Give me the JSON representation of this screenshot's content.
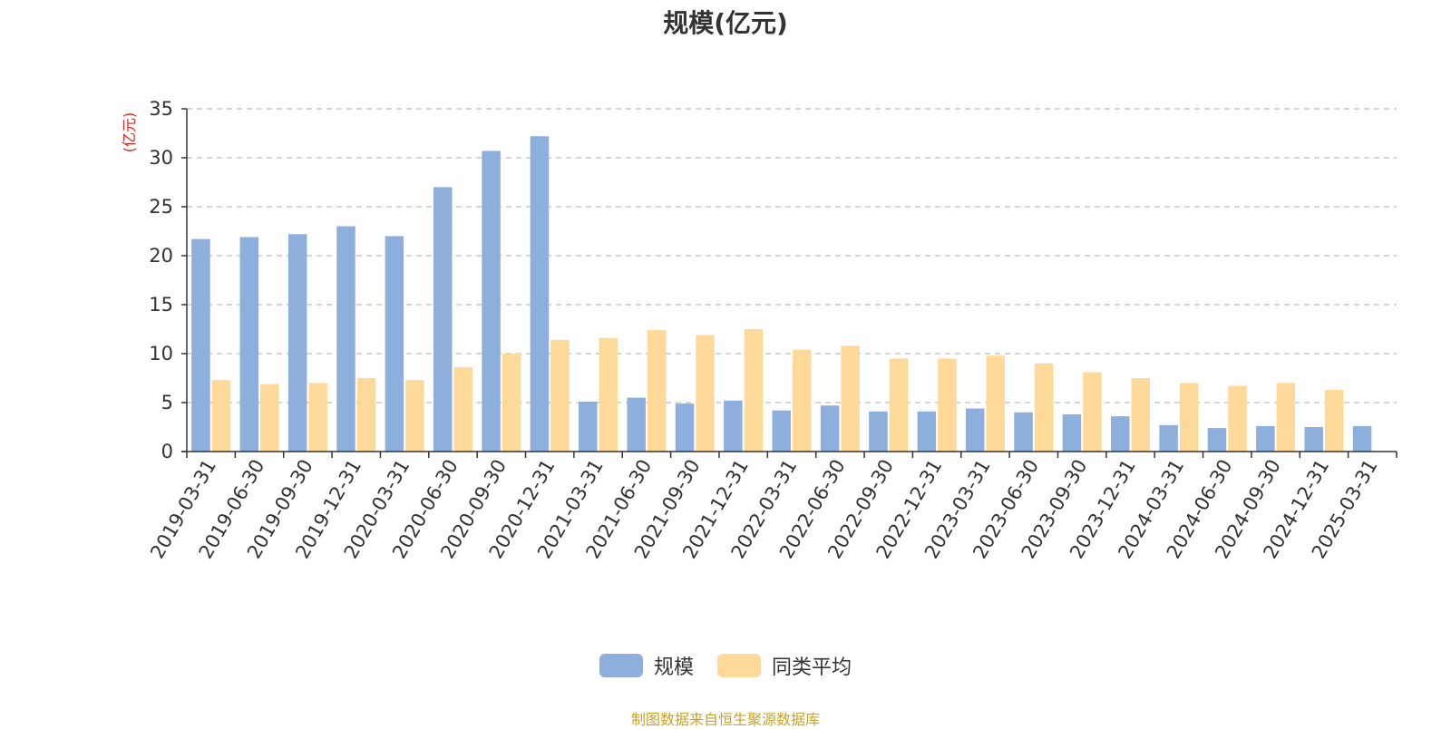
{
  "colors": {
    "scale": "#8eaedc",
    "peer_avg": "#ffd99a",
    "axis": "#333333",
    "grid": "#c8c8c8",
    "ylabel": "#e0201b",
    "source": "#c9a227"
  },
  "chart_data": {
    "type": "bar",
    "title": "规模(亿元)",
    "ylabel": "(亿元)",
    "xlabel": "",
    "ylim": [
      0,
      35
    ],
    "yticks": [
      0,
      5,
      10,
      15,
      20,
      25,
      30,
      35
    ],
    "grid": true,
    "legend_position": "bottom-center",
    "categories": [
      "2019-03-31",
      "2019-06-30",
      "2019-09-30",
      "2019-12-31",
      "2020-03-31",
      "2020-06-30",
      "2020-09-30",
      "2020-12-31",
      "2021-03-31",
      "2021-06-30",
      "2021-09-30",
      "2021-12-31",
      "2022-03-31",
      "2022-06-30",
      "2022-09-30",
      "2022-12-31",
      "2023-03-31",
      "2023-06-30",
      "2023-09-30",
      "2023-12-31",
      "2024-03-31",
      "2024-06-30",
      "2024-09-30",
      "2024-12-31",
      "2025-03-31"
    ],
    "series": [
      {
        "name": "规模",
        "values": [
          21.7,
          21.9,
          22.2,
          23.0,
          22.0,
          27.0,
          30.7,
          32.2,
          5.1,
          5.5,
          4.9,
          5.2,
          4.2,
          4.7,
          4.1,
          4.1,
          4.4,
          4.0,
          3.8,
          3.6,
          2.7,
          2.4,
          2.6,
          2.5,
          2.6
        ]
      },
      {
        "name": "同类平均",
        "values": [
          7.3,
          6.9,
          7.0,
          7.5,
          7.3,
          8.6,
          10.0,
          11.4,
          11.6,
          12.4,
          11.9,
          12.5,
          10.4,
          10.8,
          9.5,
          9.5,
          9.8,
          9.0,
          8.1,
          7.5,
          7.0,
          6.7,
          7.0,
          6.3,
          null
        ]
      }
    ]
  },
  "source_note": "制图数据来自恒生聚源数据库"
}
